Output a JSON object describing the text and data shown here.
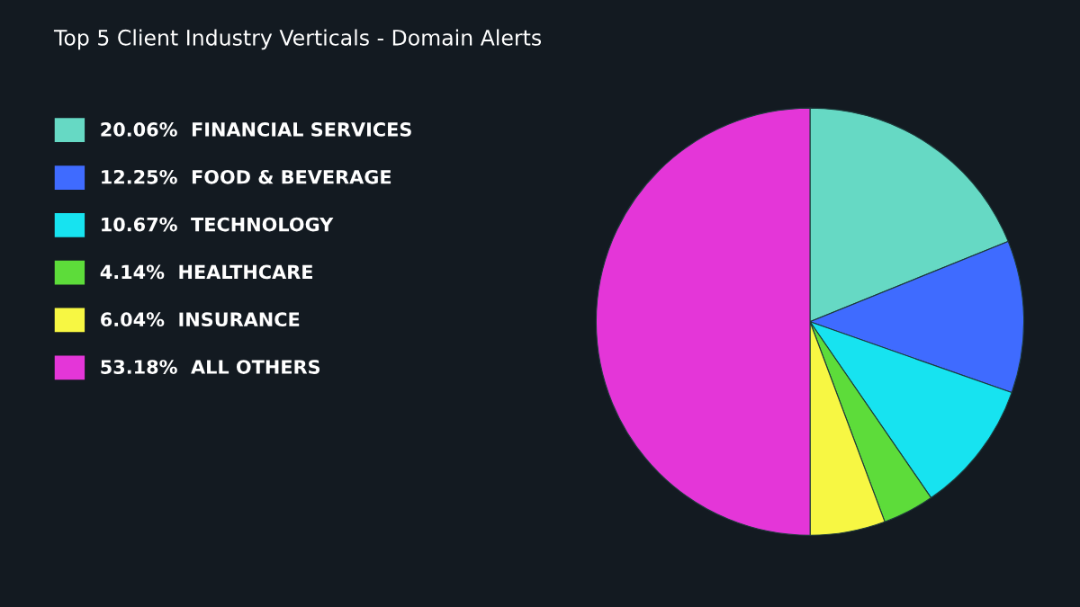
{
  "chart_data": {
    "type": "pie",
    "title": "Top 5 Client Industry Verticals - Domain Alerts",
    "categories": [
      "FINANCIAL SERVICES",
      "FOOD & BEVERAGE",
      "TECHNOLOGY",
      "HEALTHCARE",
      "INSURANCE",
      "ALL OTHERS"
    ],
    "values": [
      20.06,
      12.25,
      10.67,
      4.14,
      6.04,
      53.18
    ],
    "value_labels": [
      "20.06%",
      "12.25%",
      "10.67%",
      "4.14%",
      "6.04%",
      "53.18%"
    ],
    "colors": [
      "#66d9c4",
      "#3f6bff",
      "#17e3f0",
      "#5ddc3a",
      "#f7f743",
      "#e436d8"
    ],
    "legend": "left"
  }
}
